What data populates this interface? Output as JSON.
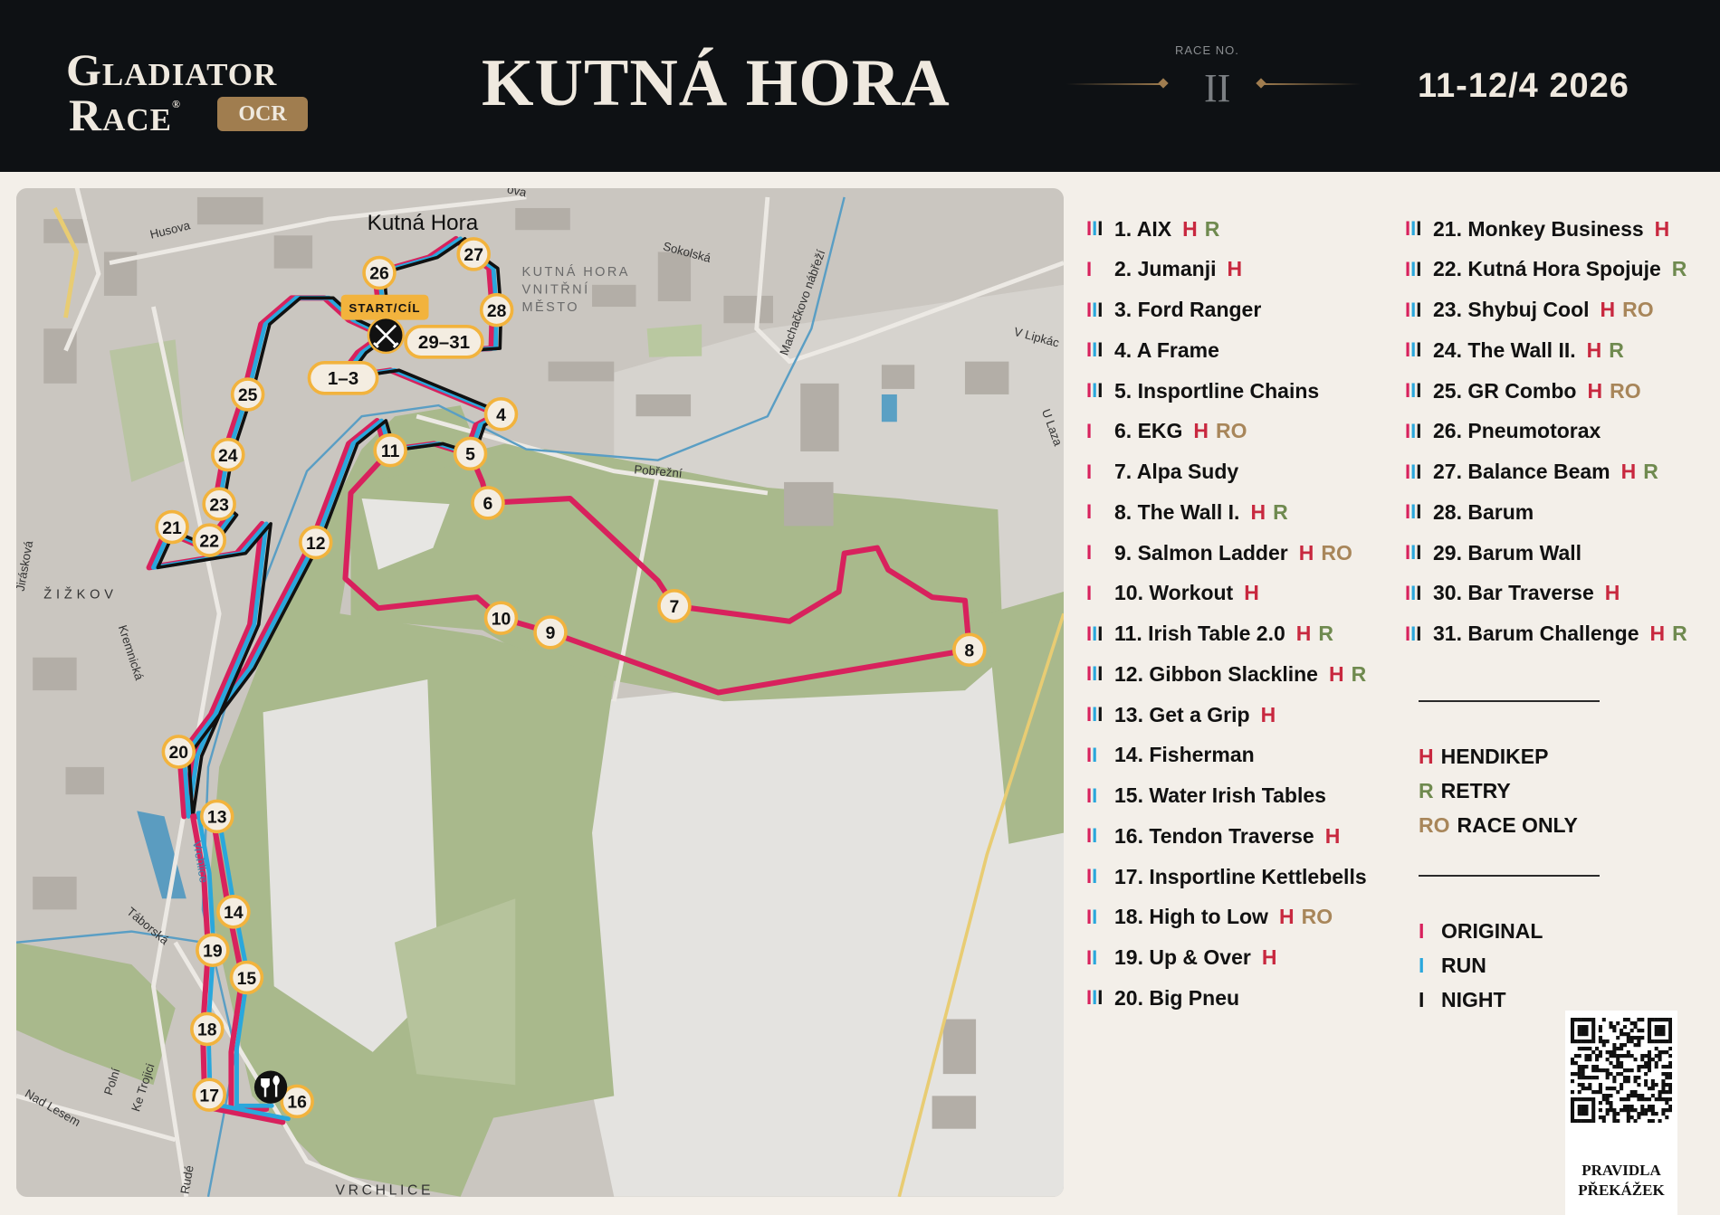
{
  "header": {
    "brand_line1": "Gladiator",
    "brand_line2": "Race",
    "brand_reg": "®",
    "brand_badge": "OCR",
    "title": "KUTNÁ HORA",
    "race_no_label": "RACE NO.",
    "race_no": "II",
    "date": "11-12/4 2026"
  },
  "colors": {
    "header_bg": "#0e1114",
    "panel_bg": "#f3efe9",
    "accent_bronze": "#a07d4f",
    "original": "#d8215d",
    "run": "#2aa7dc",
    "night": "#111111",
    "tag_H": "#c8283f",
    "tag_R": "#6f8a4f",
    "tag_RO": "#a8865a",
    "marker_ring": "#f2b33d"
  },
  "obstacles": [
    {
      "label": "1. AIX",
      "tracks": "OBN",
      "tags": [
        "H",
        "R"
      ]
    },
    {
      "label": "2. Jumanji",
      "tracks": "O",
      "tags": [
        "H"
      ]
    },
    {
      "label": "3. Ford Ranger",
      "tracks": "OBN",
      "tags": []
    },
    {
      "label": "4. A Frame",
      "tracks": "OBN",
      "tags": []
    },
    {
      "label": "5. Insportline Chains",
      "tracks": "OBN",
      "tags": []
    },
    {
      "label": "6. EKG",
      "tracks": "O",
      "tags": [
        "H",
        "RO"
      ]
    },
    {
      "label": "7. Alpa Sudy",
      "tracks": "O",
      "tags": []
    },
    {
      "label": "8. The Wall I.",
      "tracks": "O",
      "tags": [
        "H",
        "R"
      ]
    },
    {
      "label": "9. Salmon Ladder",
      "tracks": "O",
      "tags": [
        "H",
        "RO"
      ]
    },
    {
      "label": "10. Workout",
      "tracks": "O",
      "tags": [
        "H"
      ]
    },
    {
      "label": "11. Irish Table 2.0",
      "tracks": "OBN",
      "tags": [
        "H",
        "R"
      ]
    },
    {
      "label": "12. Gibbon Slackline",
      "tracks": "OBN",
      "tags": [
        "H",
        "R"
      ]
    },
    {
      "label": "13. Get a Grip",
      "tracks": "OBN",
      "tags": [
        "H"
      ]
    },
    {
      "label": "14. Fisherman",
      "tracks": "OB",
      "tags": []
    },
    {
      "label": "15. Water Irish Tables",
      "tracks": "OB",
      "tags": []
    },
    {
      "label": "16. Tendon Traverse",
      "tracks": "OB",
      "tags": [
        "H"
      ]
    },
    {
      "label": "17. Insportline Kettlebells",
      "tracks": "OB",
      "tags": []
    },
    {
      "label": "18. High to Low",
      "tracks": "OB",
      "tags": [
        "H",
        "RO"
      ]
    },
    {
      "label": "19. Up & Over",
      "tracks": "OB",
      "tags": [
        "H"
      ]
    },
    {
      "label": "20. Big Pneu",
      "tracks": "OBN",
      "tags": []
    },
    {
      "label": "21. Monkey Business",
      "tracks": "OBN",
      "tags": [
        "H"
      ]
    },
    {
      "label": "22. Kutná Hora Spojuje",
      "tracks": "OBN",
      "tags": [
        "R"
      ]
    },
    {
      "label": "23. Shybuj Cool",
      "tracks": "OBN",
      "tags": [
        "H",
        "RO"
      ]
    },
    {
      "label": "24. The Wall II.",
      "tracks": "OBN",
      "tags": [
        "H",
        "R"
      ]
    },
    {
      "label": "25. GR Combo",
      "tracks": "OBN",
      "tags": [
        "H",
        "RO"
      ]
    },
    {
      "label": "26. Pneumotorax",
      "tracks": "OBN",
      "tags": []
    },
    {
      "label": "27. Balance Beam",
      "tracks": "OBN",
      "tags": [
        "H",
        "R"
      ]
    },
    {
      "label": "28. Barum",
      "tracks": "OBN",
      "tags": []
    },
    {
      "label": "29. Barum Wall",
      "tracks": "OBN",
      "tags": []
    },
    {
      "label": "30. Bar Traverse",
      "tracks": "OBN",
      "tags": [
        "H"
      ]
    },
    {
      "label": "31. Barum Challenge",
      "tracks": "OBN",
      "tags": [
        "H",
        "R"
      ]
    }
  ],
  "legend": {
    "tags": [
      {
        "code": "H",
        "label": "HENDIKEP"
      },
      {
        "code": "R",
        "label": "RETRY"
      },
      {
        "code": "RO",
        "label": "RACE ONLY"
      }
    ],
    "tracks": [
      {
        "bar": "I",
        "label": "ORIGINAL"
      },
      {
        "bar": "I",
        "label": "RUN"
      },
      {
        "bar": "I",
        "label": "NIGHT"
      }
    ]
  },
  "qr": {
    "caption_line1": "PRAVIDLA",
    "caption_line2": "PŘEKÁŽEK"
  },
  "map": {
    "city": "Kutná Hora",
    "district_line1": "KUTNÁ HORA",
    "district_line2": "VNITŘNÍ",
    "district_line3": "MĚSTO",
    "start_label": "START/CÍL",
    "start_icon": "crossed-swords-icon",
    "food_icon": "fork-spoon-icon",
    "markers": [
      "1–3",
      "4",
      "5",
      "6",
      "7",
      "8",
      "9",
      "10",
      "11",
      "12",
      "13",
      "14",
      "15",
      "16",
      "17",
      "18",
      "19",
      "20",
      "21",
      "22",
      "23",
      "24",
      "25",
      "26",
      "27",
      "28",
      "29–31"
    ],
    "streets": [
      "Husova",
      "Sokolská",
      "Machačkovo nábřeží",
      "Pobřežní",
      "V Lipkác",
      "U Laza",
      "ŽIŽKOV",
      "Kremnická",
      "Táborská",
      "Polní",
      "Ke Trojici",
      "Nad Lesem",
      "Rudé",
      "VRCHLICE",
      "Vrchlice",
      "ova",
      "Jirásková",
      "ova"
    ]
  }
}
